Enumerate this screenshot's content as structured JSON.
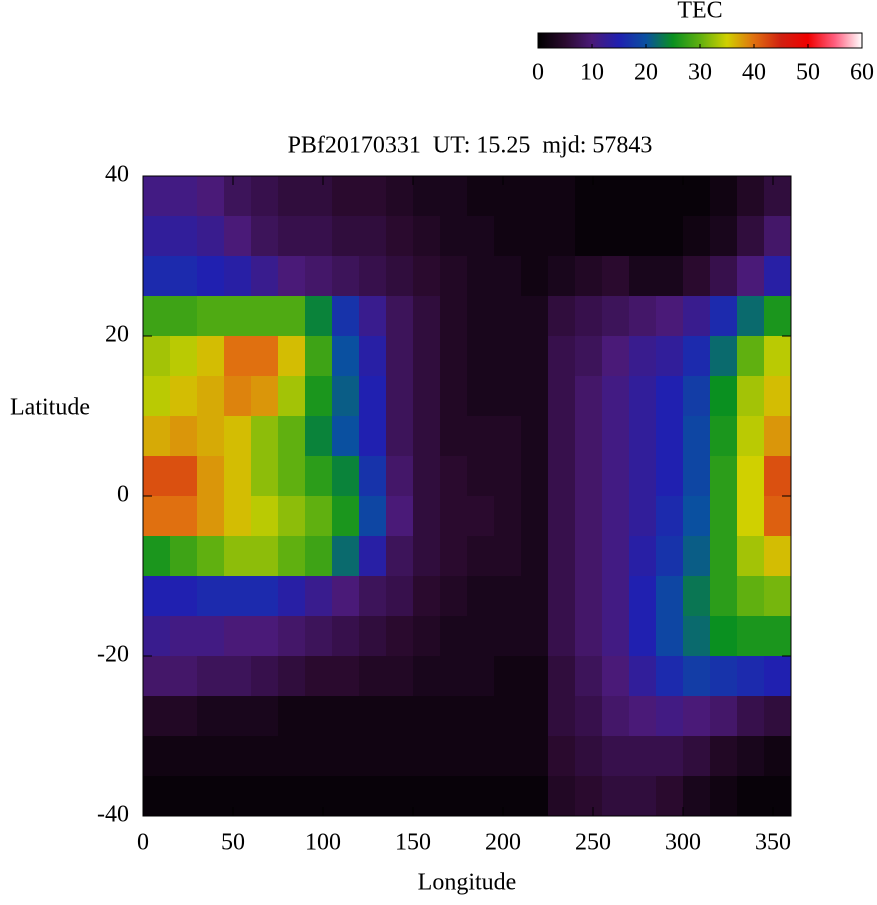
{
  "chart_data": {
    "type": "heatmap",
    "title": "PBf20170331  UT: 15.25  mjd: 57843",
    "x_label": "Longitude",
    "y_label": "Latitude",
    "xlim": [
      0,
      360
    ],
    "ylim": [
      -40,
      40
    ],
    "xticks": [
      0,
      50,
      100,
      150,
      200,
      250,
      300,
      350
    ],
    "yticks": [
      -40,
      -20,
      0,
      20,
      40
    ],
    "x": [
      7.5,
      22.5,
      37.5,
      52.5,
      67.5,
      82.5,
      97.5,
      112.5,
      127.5,
      142.5,
      157.5,
      172.5,
      187.5,
      202.5,
      217.5,
      232.5,
      247.5,
      262.5,
      277.5,
      292.5,
      307.5,
      322.5,
      337.5,
      352.5
    ],
    "y": [
      37.5,
      32.5,
      27.5,
      22.5,
      17.5,
      12.5,
      7.5,
      2.5,
      -2.5,
      -7.5,
      -12.5,
      -17.5,
      -22.5,
      -27.5,
      -32.5,
      -37.5
    ],
    "z": [
      [
        11,
        11,
        10,
        8,
        7,
        6,
        6,
        5,
        5,
        4,
        3,
        3,
        2,
        2,
        2,
        2,
        1,
        1,
        1,
        1,
        1,
        2,
        4,
        6
      ],
      [
        13,
        13,
        12,
        10,
        8,
        7,
        7,
        6,
        6,
        5,
        4,
        3,
        3,
        2,
        2,
        2,
        1,
        1,
        1,
        1,
        2,
        3,
        6,
        9
      ],
      [
        16,
        16,
        15,
        14,
        12,
        10,
        9,
        8,
        7,
        6,
        5,
        4,
        3,
        3,
        2,
        3,
        4,
        5,
        3,
        3,
        5,
        7,
        10,
        14
      ],
      [
        28,
        28,
        29,
        29,
        29,
        29,
        24,
        17,
        12,
        8,
        6,
        4,
        3,
        3,
        3,
        6,
        7,
        8,
        9,
        10,
        12,
        16,
        22,
        26
      ],
      [
        33,
        34,
        36,
        40,
        40,
        36,
        28,
        20,
        14,
        8,
        6,
        4,
        3,
        3,
        3,
        7,
        8,
        10,
        12,
        13,
        16,
        22,
        30,
        34
      ],
      [
        34,
        36,
        37,
        39,
        38,
        33,
        26,
        21,
        15,
        8,
        6,
        4,
        3,
        3,
        3,
        7,
        9,
        11,
        13,
        15,
        18,
        25,
        33,
        36
      ],
      [
        37,
        38,
        37,
        36,
        32,
        30,
        24,
        20,
        15,
        8,
        6,
        4,
        4,
        4,
        3,
        7,
        9,
        11,
        13,
        15,
        19,
        26,
        34,
        38
      ],
      [
        42,
        42,
        38,
        36,
        32,
        30,
        27,
        24,
        17,
        9,
        6,
        5,
        4,
        4,
        3,
        7,
        9,
        11,
        13,
        15,
        19,
        27,
        35,
        42
      ],
      [
        40,
        40,
        38,
        36,
        34,
        32,
        30,
        26,
        19,
        10,
        6,
        5,
        5,
        4,
        3,
        7,
        9,
        11,
        13,
        16,
        20,
        27,
        35,
        41
      ],
      [
        26,
        28,
        30,
        32,
        32,
        30,
        28,
        22,
        14,
        8,
        6,
        5,
        4,
        4,
        3,
        7,
        9,
        11,
        14,
        17,
        21,
        27,
        33,
        36
      ],
      [
        15,
        15,
        16,
        16,
        16,
        14,
        12,
        10,
        8,
        7,
        5,
        4,
        3,
        3,
        3,
        7,
        9,
        11,
        15,
        19,
        23,
        27,
        30,
        31
      ],
      [
        12,
        11,
        11,
        10,
        10,
        9,
        8,
        7,
        6,
        5,
        4,
        3,
        3,
        3,
        3,
        7,
        9,
        11,
        15,
        19,
        22,
        25,
        26,
        26
      ],
      [
        9,
        9,
        8,
        8,
        7,
        6,
        5,
        5,
        4,
        4,
        3,
        3,
        3,
        2,
        2,
        6,
        8,
        10,
        13,
        16,
        18,
        17,
        16,
        15
      ],
      [
        4,
        4,
        3,
        3,
        3,
        2,
        2,
        2,
        2,
        2,
        2,
        2,
        2,
        2,
        2,
        6,
        7,
        9,
        10,
        11,
        10,
        9,
        7,
        6
      ],
      [
        2,
        2,
        2,
        2,
        2,
        2,
        2,
        2,
        2,
        2,
        2,
        2,
        2,
        2,
        2,
        5,
        6,
        7,
        7,
        7,
        6,
        4,
        3,
        2
      ],
      [
        1,
        1,
        1,
        1,
        1,
        1,
        1,
        1,
        1,
        1,
        1,
        1,
        1,
        1,
        1,
        4,
        5,
        6,
        6,
        5,
        3,
        2,
        1,
        1
      ]
    ],
    "colorbar": {
      "label": "TEC",
      "clim": [
        0,
        60
      ],
      "ticks": [
        0,
        10,
        20,
        30,
        40,
        50,
        60
      ],
      "colors": [
        "#000000",
        "#2a0a2e",
        "#4a1a78",
        "#2020b0",
        "#0a50a0",
        "#0a9020",
        "#60b010",
        "#d0d000",
        "#e07010",
        "#d02010",
        "#f00000",
        "#ff6080",
        "#ffffff"
      ]
    }
  }
}
